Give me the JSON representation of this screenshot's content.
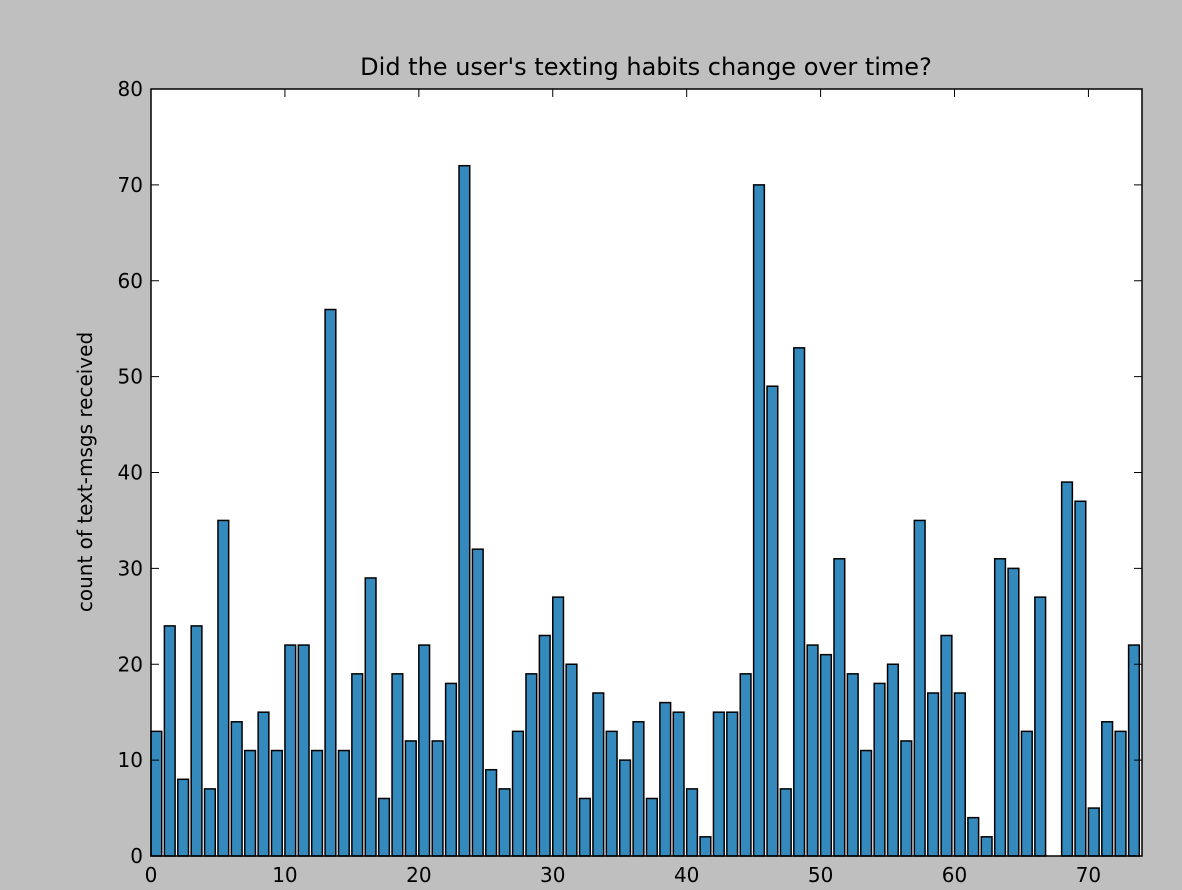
{
  "chart_data": {
    "type": "bar",
    "title": "Did the user's texting habits change over time?",
    "y_label": "count of text-msgs received",
    "x": [
      0,
      1,
      2,
      3,
      4,
      5,
      6,
      7,
      8,
      9,
      10,
      11,
      12,
      13,
      14,
      15,
      16,
      17,
      18,
      19,
      20,
      21,
      22,
      23,
      24,
      25,
      26,
      27,
      28,
      29,
      30,
      31,
      32,
      33,
      34,
      35,
      36,
      37,
      38,
      39,
      40,
      41,
      42,
      43,
      44,
      45,
      46,
      47,
      48,
      49,
      50,
      51,
      52,
      53,
      54,
      55,
      56,
      57,
      58,
      59,
      60,
      61,
      62,
      63,
      64,
      65,
      66,
      67,
      68,
      69,
      70,
      71,
      72,
      73
    ],
    "values": [
      13,
      24,
      8,
      24,
      7,
      35,
      14,
      11,
      15,
      11,
      22,
      22,
      11,
      57,
      11,
      19,
      29,
      6,
      19,
      12,
      22,
      12,
      18,
      72,
      32,
      9,
      7,
      13,
      19,
      23,
      27,
      20,
      6,
      17,
      13,
      10,
      14,
      6,
      16,
      15,
      7,
      2,
      15,
      15,
      19,
      70,
      49,
      7,
      53,
      22,
      21,
      31,
      19,
      11,
      18,
      20,
      12,
      35,
      17,
      23,
      17,
      4,
      2,
      31,
      30,
      13,
      27,
      0,
      39,
      37,
      5,
      14,
      13,
      22
    ],
    "color": "#348abd",
    "xlim": [
      0,
      74
    ],
    "xticks": [
      0,
      10,
      20,
      30,
      40,
      50,
      60,
      70
    ],
    "ylim": [
      0,
      80
    ],
    "yticks": [
      0,
      10,
      20,
      30,
      40,
      50,
      60,
      70,
      80
    ]
  }
}
